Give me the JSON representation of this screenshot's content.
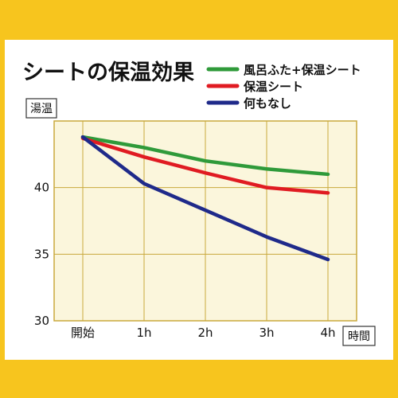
{
  "chart_data": {
    "type": "line",
    "title": "シートの保温効果",
    "ylabel": "湯温",
    "xlabel": "時間",
    "categories": [
      "開始",
      "1h",
      "2h",
      "3h",
      "4h"
    ],
    "ylim": [
      30,
      45
    ],
    "yticks": [
      30,
      35,
      40
    ],
    "grid": true,
    "legend_position": "top-right",
    "series": [
      {
        "name": "風呂ふた+保温シート",
        "color": "#2f9a3a",
        "values": [
          43.8,
          43.0,
          42.0,
          41.4,
          41.0
        ]
      },
      {
        "name": "保温シート",
        "color": "#e01b22",
        "values": [
          43.7,
          42.3,
          41.1,
          40.0,
          39.6
        ]
      },
      {
        "name": "何もなし",
        "color": "#1f2a8a",
        "values": [
          43.8,
          40.3,
          38.3,
          36.3,
          34.6
        ]
      }
    ],
    "plot_background": "#fbf6dc",
    "plot_border_color": "#c9a93d"
  },
  "frame_color": "#f7c51e"
}
